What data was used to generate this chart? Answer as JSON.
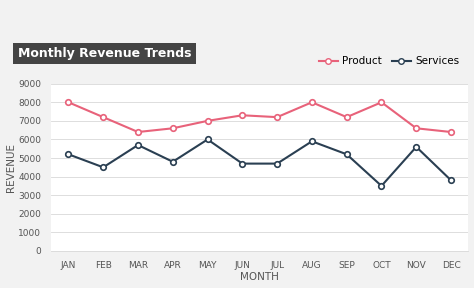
{
  "title": "Monthly Revenue Trends",
  "xlabel": "MONTH",
  "ylabel": "REVENUE",
  "months": [
    "JAN",
    "FEB",
    "MAR",
    "APR",
    "MAY",
    "JUN",
    "JUL",
    "AUG",
    "SEP",
    "OCT",
    "NOV",
    "DEC"
  ],
  "product": [
    8000,
    7200,
    6400,
    6600,
    7000,
    7300,
    7200,
    8000,
    7200,
    8000,
    6600,
    6400
  ],
  "services": [
    5200,
    4500,
    5700,
    4800,
    6000,
    4700,
    4700,
    5900,
    5200,
    3500,
    5600,
    3800
  ],
  "product_color": "#e8627a",
  "services_color": "#2a3f52",
  "ylim": [
    0,
    9000
  ],
  "yticks": [
    0,
    1000,
    2000,
    3000,
    4000,
    5000,
    6000,
    7000,
    8000,
    9000
  ],
  "fig_bg_color": "#ffffff",
  "plot_bg_color": "#ffffff",
  "outer_bg_color": "#f2f2f2",
  "title_box_color": "#444444",
  "title_text_color": "#ffffff",
  "grid_color": "#d8d8d8",
  "tick_color": "#555555",
  "label_color": "#555555",
  "marker": "o",
  "markersize": 4,
  "linewidth": 1.5,
  "title_fontsize": 9,
  "tick_fontsize": 6.5,
  "label_fontsize": 7.5,
  "legend_fontsize": 7.5
}
